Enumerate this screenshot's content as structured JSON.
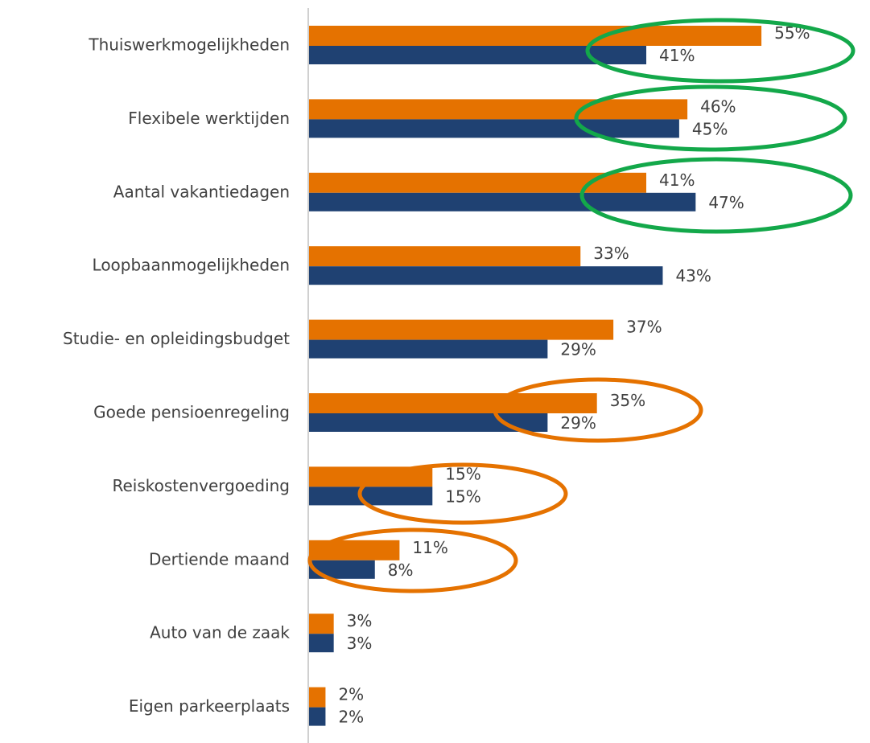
{
  "chart_data": {
    "type": "hbar",
    "categories": [
      "Thuiswerkmogelijkheden",
      "Flexibele werktijden",
      "Aantal vakantiedagen",
      "Loopbaanmogelijkheden",
      "Studie- en opleidingsbudget",
      "Goede pensioenregeling",
      "Reiskostenvergoeding",
      "Dertiende maand",
      "Auto van de zaak",
      "Eigen parkeerplaats"
    ],
    "series": [
      {
        "color": "#e57200",
        "values": [
          55,
          46,
          41,
          33,
          37,
          35,
          15,
          11,
          3,
          2
        ],
        "value_labels": [
          "55%",
          "46%",
          "41%",
          "33%",
          "37%",
          "35%",
          "15%",
          "11%",
          "3%",
          "2%"
        ]
      },
      {
        "color": "#1f4172",
        "values": [
          41,
          45,
          47,
          43,
          29,
          29,
          15,
          8,
          3,
          2
        ],
        "value_labels": [
          "41%",
          "45%",
          "47%",
          "43%",
          "29%",
          "29%",
          "15%",
          "8%",
          "3%",
          "2%"
        ]
      }
    ]
  }
}
